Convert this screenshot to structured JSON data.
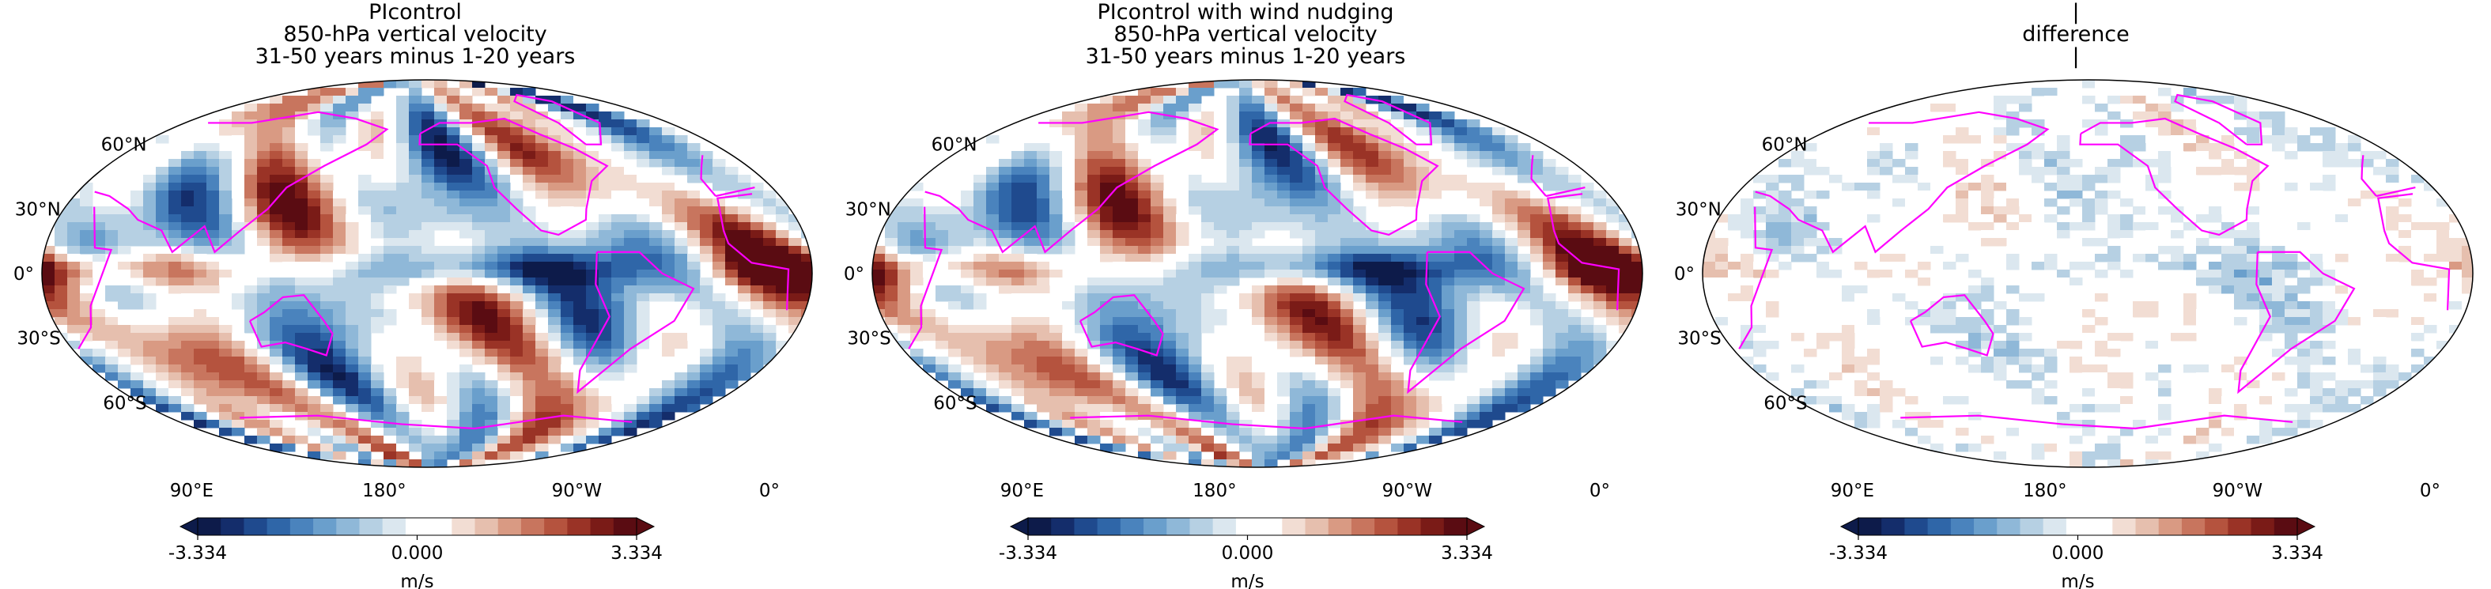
{
  "panels": [
    {
      "title_lines": [
        "PIcontrol",
        "850-hPa vertical velocity",
        "31-50 years minus 1-20 years"
      ],
      "intensity": 1.0
    },
    {
      "title_lines": [
        "PIcontrol with wind nudging",
        "850-hPa vertical velocity",
        "31-50 years minus 1-20 years"
      ],
      "intensity": 0.95
    },
    {
      "title_lines": [
        "|",
        "difference",
        "|"
      ],
      "intensity": 0.22
    }
  ],
  "lat_labels": [
    "60°N",
    "30°N",
    "0°",
    "30°S",
    "60°S"
  ],
  "lon_labels": [
    "90°E",
    "180°",
    "90°W",
    "0°"
  ],
  "colorbar": {
    "min_label": "-3.334",
    "mid_label": "0.000",
    "max_label": "3.334",
    "unit": "m/s",
    "colors": [
      "#0d1b4a",
      "#142d6b",
      "#1f4a8e",
      "#2f66a8",
      "#4a83bd",
      "#6a9fcc",
      "#8fb8d8",
      "#b6d0e3",
      "#dbe7ef",
      "#ffffff",
      "#ffffff",
      "#f2ddd3",
      "#e6bfae",
      "#d99a83",
      "#c8755e",
      "#b5533e",
      "#9a3326",
      "#7a1b17",
      "#5a0c12"
    ]
  },
  "colors": {
    "coastline": "#ff00ff",
    "border": "#000000"
  }
}
